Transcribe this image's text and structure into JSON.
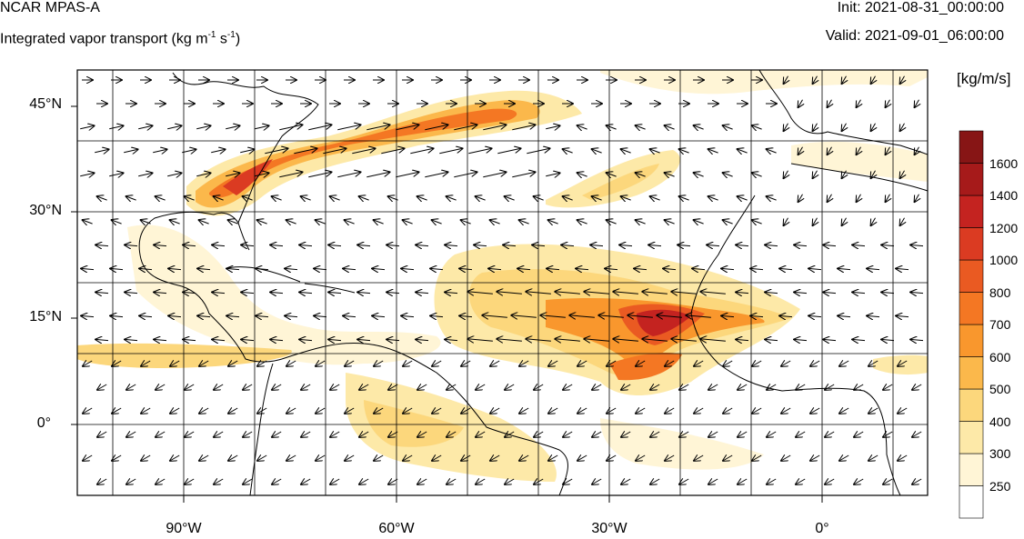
{
  "header": {
    "model": "NCAR MPAS-A",
    "field_prefix": "Integrated vapor transport (kg m",
    "exp1": "-1",
    "space": " s",
    "exp2": "-1",
    "suffix": ")",
    "init": "Init: 2021-08-31_00:00:00",
    "valid": "Valid: 2021-09-01_06:00:00"
  },
  "map": {
    "lat_labels": [
      "45°N",
      "30°N",
      "15°N",
      "0°"
    ],
    "lon_labels": [
      "90°W",
      "60°W",
      "30°W",
      "0°"
    ],
    "colorbar_units": "[kg/m/s]",
    "colorbar_levels": [
      "250",
      "300",
      "400",
      "500",
      "600",
      "700",
      "800",
      "1000",
      "1200",
      "1400",
      "1600"
    ],
    "colorbar_colors": [
      "#ffffff",
      "#fff5d6",
      "#fde9a8",
      "#fcd77c",
      "#fbb84b",
      "#f9972d",
      "#f47723",
      "#ea5a22",
      "#db3b22",
      "#c42320",
      "#a61a1a",
      "#871515"
    ]
  }
}
